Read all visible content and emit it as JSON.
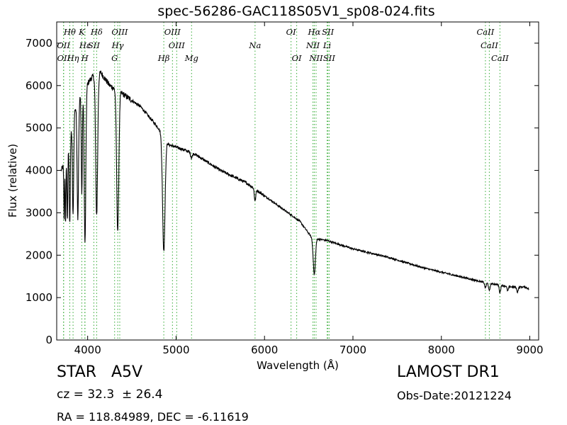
{
  "chart_data": {
    "type": "line",
    "title": "spec-56286-GAC118S05V1_sp08-024.fits",
    "xlabel": "Wavelength (Å)",
    "ylabel": "Flux (relative)",
    "xlim": [
      3650,
      9100
    ],
    "ylim": [
      0,
      7500
    ],
    "xticks": [
      4000,
      5000,
      6000,
      7000,
      8000,
      9000
    ],
    "yticks": [
      0,
      1000,
      2000,
      3000,
      4000,
      5000,
      6000,
      7000
    ],
    "grid": false,
    "line_color": "#000000",
    "marker_color": "#33aa33",
    "lines": [
      {
        "label": "Hθ",
        "x": 3798,
        "row": 0
      },
      {
        "label": "K",
        "x": 3934,
        "row": 0
      },
      {
        "label": "Hδ",
        "x": 4102,
        "row": 0
      },
      {
        "label": "OIII",
        "x": 4363,
        "row": 0
      },
      {
        "label": "OIII",
        "x": 4959,
        "row": 0
      },
      {
        "label": "OI",
        "x": 6300,
        "row": 0
      },
      {
        "label": "Hα",
        "x": 6563,
        "row": 0
      },
      {
        "label": "SII",
        "x": 6717,
        "row": 0
      },
      {
        "label": "CaII",
        "x": 8498,
        "row": 0
      },
      {
        "label": "OII",
        "x": 3727,
        "row": 1
      },
      {
        "label": "Hε",
        "x": 3970,
        "row": 1
      },
      {
        "label": "SII",
        "x": 4070,
        "row": 1
      },
      {
        "label": "Hγ",
        "x": 4340,
        "row": 1
      },
      {
        "label": "OIII",
        "x": 5007,
        "row": 1
      },
      {
        "label": "Na",
        "x": 5893,
        "row": 1
      },
      {
        "label": "NII",
        "x": 6548,
        "row": 1
      },
      {
        "label": "Li",
        "x": 6708,
        "row": 1
      },
      {
        "label": "CaII",
        "x": 8542,
        "row": 1
      },
      {
        "label": "OII",
        "x": 3729,
        "row": 2
      },
      {
        "label": "Hη",
        "x": 3835,
        "row": 2
      },
      {
        "label": "H",
        "x": 3968,
        "row": 2
      },
      {
        "label": "G",
        "x": 4305,
        "row": 2
      },
      {
        "label": "Hβ",
        "x": 4861,
        "row": 2
      },
      {
        "label": "Mg",
        "x": 5175,
        "row": 2
      },
      {
        "label": "OI",
        "x": 6364,
        "row": 2
      },
      {
        "label": "NII",
        "x": 6583,
        "row": 2
      },
      {
        "label": "SII",
        "x": 6731,
        "row": 2
      },
      {
        "label": "CaII",
        "x": 8662,
        "row": 2
      }
    ],
    "continuum": [
      [
        3700,
        4000
      ],
      [
        3750,
        4200
      ],
      [
        3850,
        5400
      ],
      [
        3950,
        5900
      ],
      [
        4050,
        6200
      ],
      [
        4150,
        6300
      ],
      [
        4250,
        6000
      ],
      [
        4400,
        5800
      ],
      [
        4600,
        5500
      ],
      [
        4800,
        5000
      ],
      [
        4920,
        4600
      ],
      [
        5000,
        4550
      ],
      [
        5200,
        4400
      ],
      [
        5500,
        4000
      ],
      [
        5800,
        3700
      ],
      [
        6000,
        3400
      ],
      [
        6200,
        3100
      ],
      [
        6400,
        2800
      ],
      [
        6540,
        2400
      ],
      [
        6700,
        2350
      ],
      [
        7000,
        2150
      ],
      [
        7400,
        1950
      ],
      [
        7800,
        1700
      ],
      [
        8200,
        1500
      ],
      [
        8500,
        1350
      ],
      [
        8800,
        1250
      ],
      [
        8950,
        1250
      ],
      [
        8990,
        1200
      ]
    ],
    "absorption": [
      {
        "x": 3734,
        "depth": 1300,
        "w": 4
      },
      {
        "x": 3750,
        "depth": 1500,
        "w": 4
      },
      {
        "x": 3771,
        "depth": 1600,
        "w": 5
      },
      {
        "x": 3798,
        "depth": 2000,
        "w": 6
      },
      {
        "x": 3835,
        "depth": 2300,
        "w": 7
      },
      {
        "x": 3889,
        "depth": 2700,
        "w": 8
      },
      {
        "x": 3934,
        "depth": 2400,
        "w": 6
      },
      {
        "x": 3970,
        "depth": 3700,
        "w": 9
      },
      {
        "x": 4102,
        "depth": 3300,
        "w": 11
      },
      {
        "x": 4340,
        "depth": 3300,
        "w": 12
      },
      {
        "x": 4861,
        "depth": 2700,
        "w": 14
      },
      {
        "x": 5175,
        "depth": 120,
        "w": 10
      },
      {
        "x": 5893,
        "depth": 280,
        "w": 8
      },
      {
        "x": 6563,
        "depth": 850,
        "w": 12
      },
      {
        "x": 8498,
        "depth": 120,
        "w": 8
      },
      {
        "x": 8542,
        "depth": 180,
        "w": 8
      },
      {
        "x": 8662,
        "depth": 180,
        "w": 8
      },
      {
        "x": 8750,
        "depth": 110,
        "w": 8
      },
      {
        "x": 8860,
        "depth": 120,
        "w": 8
      }
    ]
  },
  "footer": {
    "class": "STAR   A5V",
    "survey": "LAMOST DR1",
    "cz": "cz = 32.3  ± 26.4",
    "obs_date": "Obs-Date:20121224",
    "radec": "RA = 118.84989, DEC = -6.11619"
  }
}
